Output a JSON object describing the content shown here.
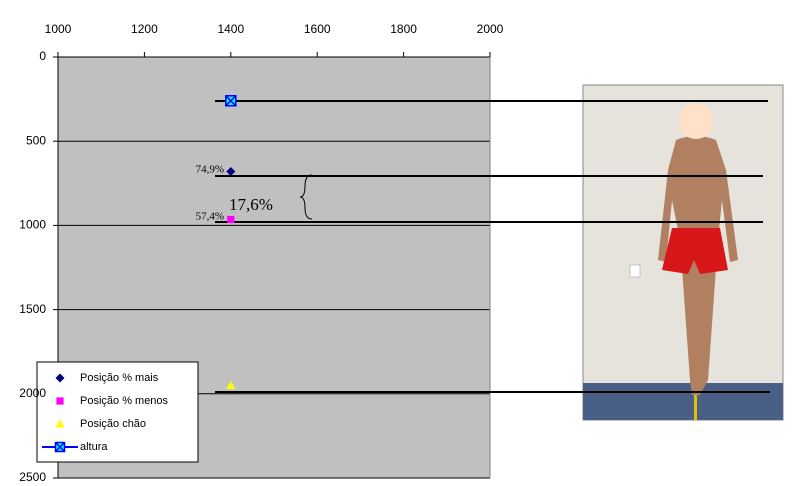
{
  "chart_data": {
    "type": "scatter",
    "xlim": [
      1000,
      2000
    ],
    "xticks": [
      1000,
      1200,
      1400,
      1600,
      1800,
      2000
    ],
    "ylim": [
      0,
      2500
    ],
    "yticks": [
      0,
      500,
      1000,
      1500,
      2000,
      2500
    ],
    "y_inverted": true,
    "grid": true,
    "legend": "bottom-left",
    "series": [
      {
        "name": "Posição % mais",
        "color": "#000080",
        "marker": "diamond",
        "x": [
          1400
        ],
        "values": [
          680
        ]
      },
      {
        "name": "Posição % menos",
        "color": "#ff00ff",
        "marker": "square",
        "x": [
          1400
        ],
        "values": [
          965
        ]
      },
      {
        "name": "Posição chão",
        "color": "#ffff00",
        "marker": "triangle",
        "x": [
          1400
        ],
        "values": [
          1950
        ]
      },
      {
        "name": "altura",
        "color": "#0000ff",
        "marker": "boxed-x",
        "x": [
          1400
        ],
        "values": [
          260
        ]
      }
    ],
    "annotations": [
      "74,9%",
      "57,4%",
      "17,6%"
    ]
  }
}
